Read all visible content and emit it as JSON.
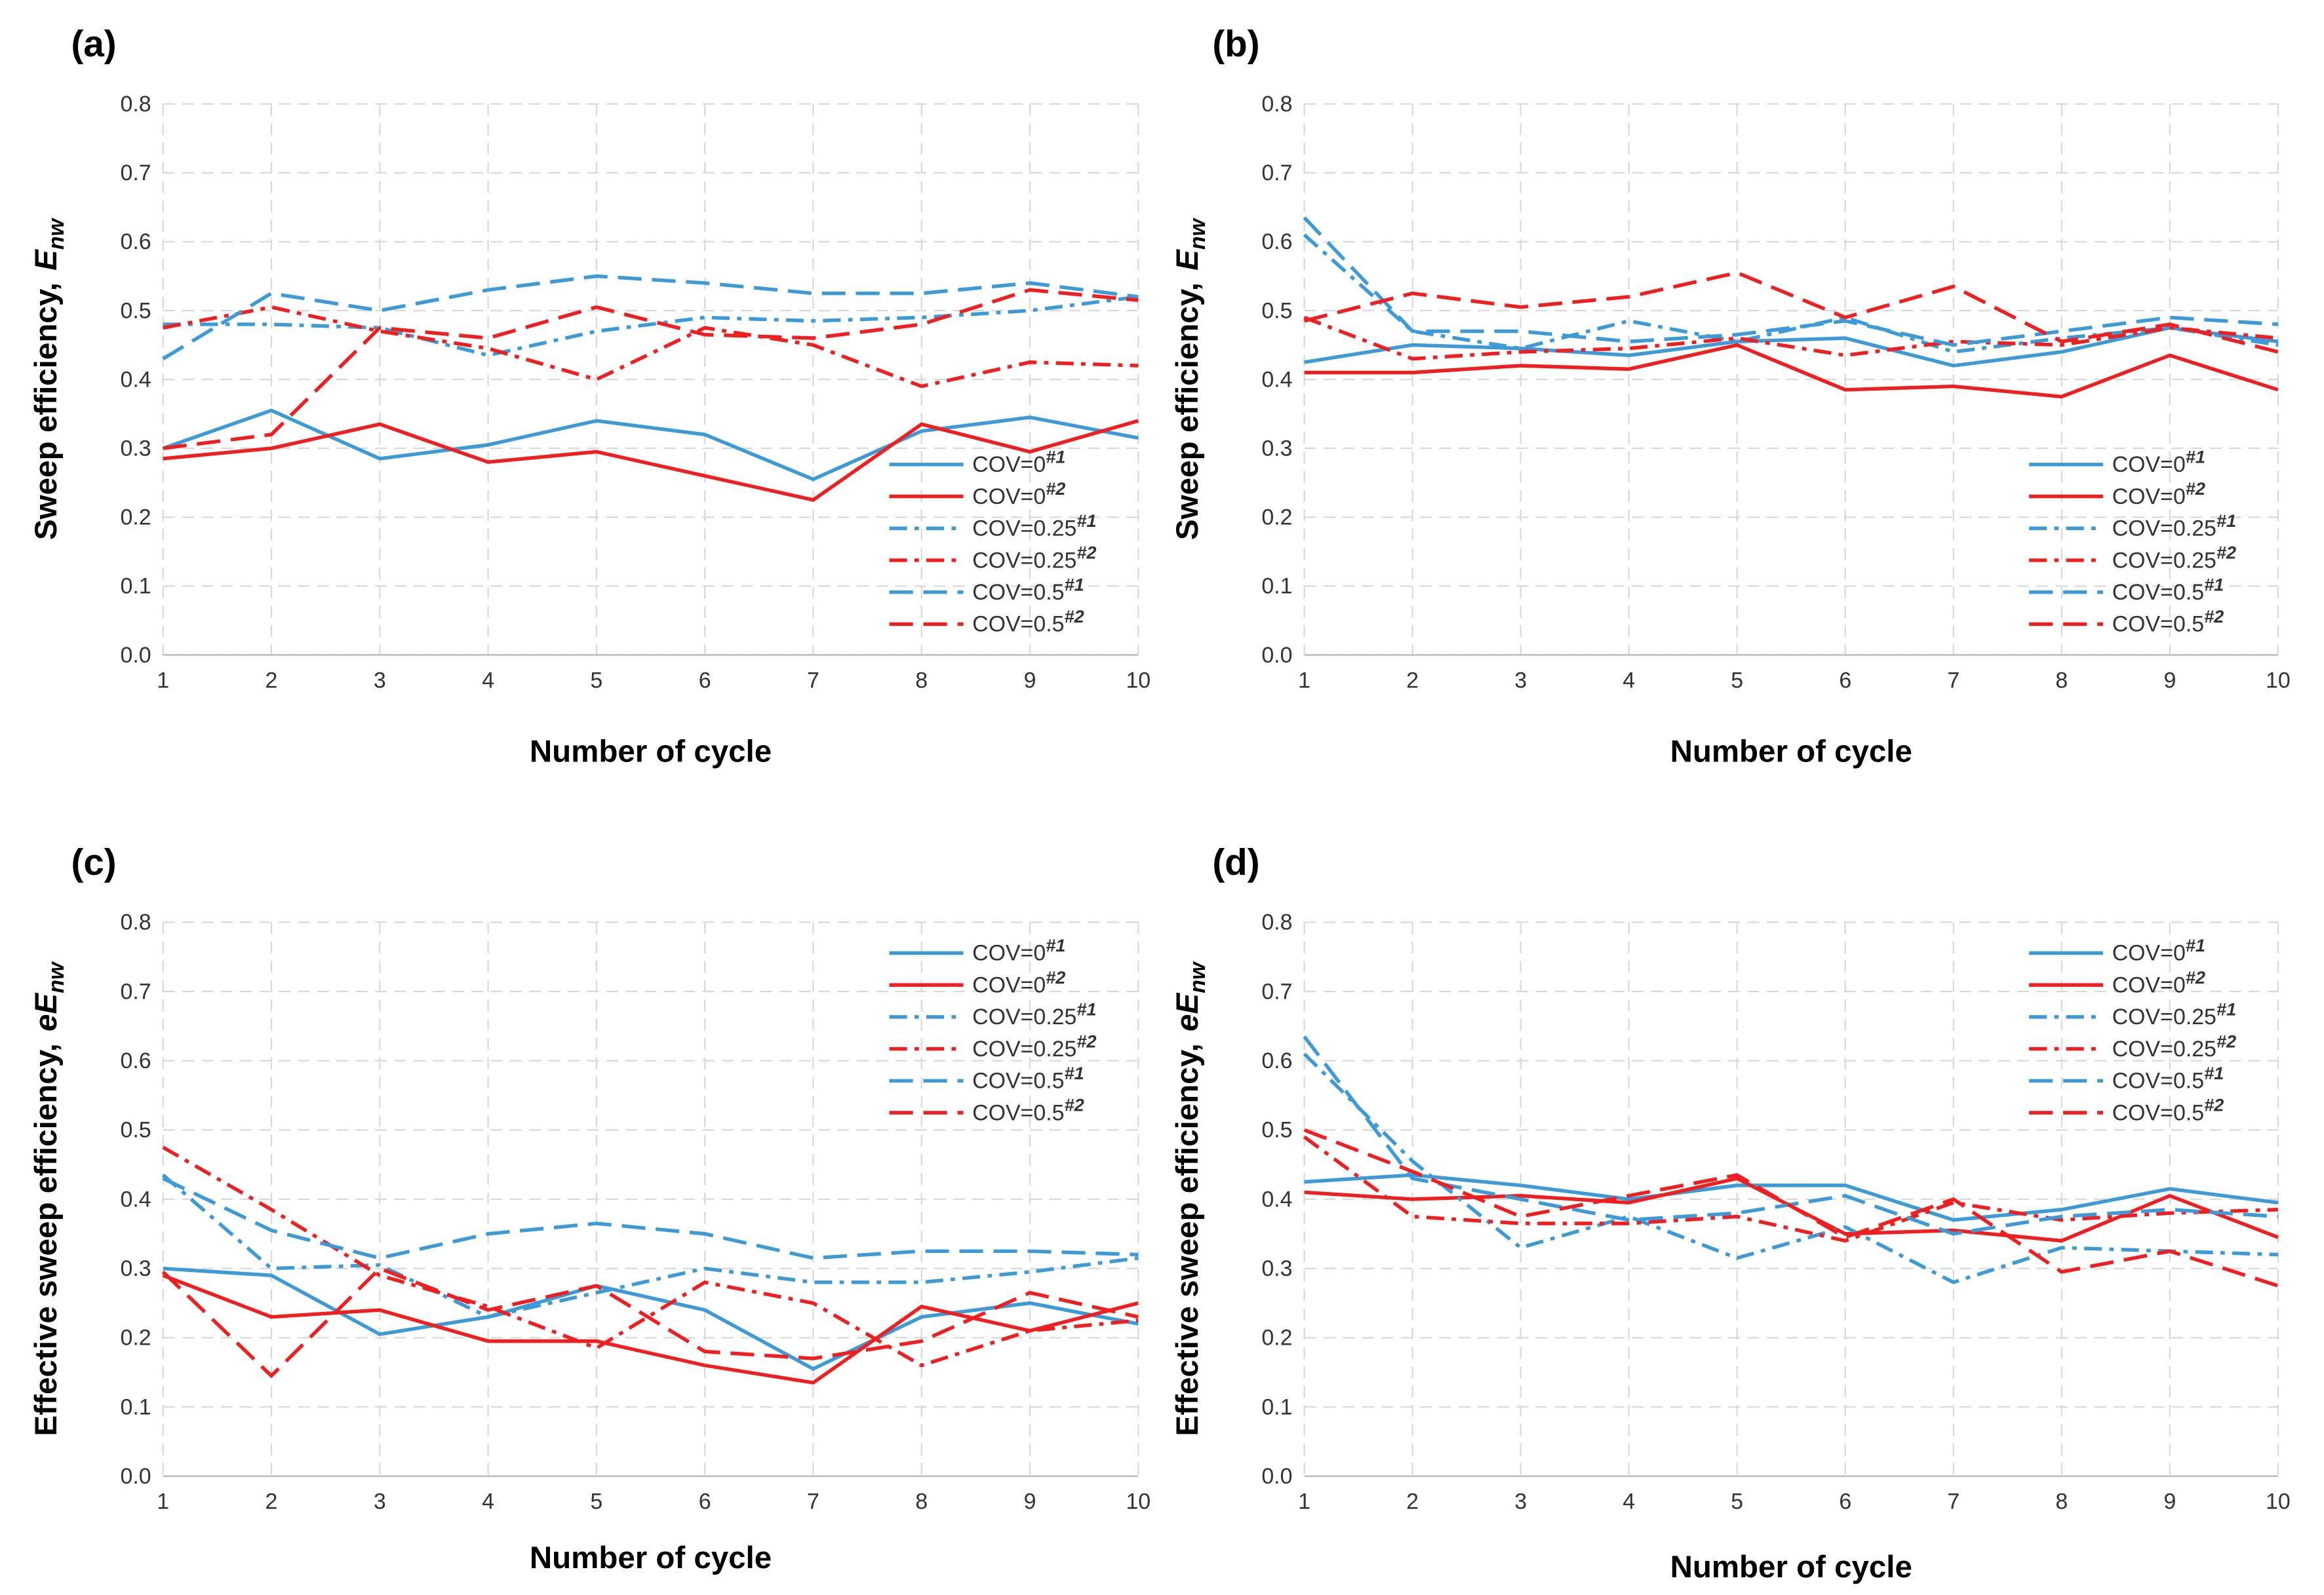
{
  "chart_data": [
    {
      "type": "line",
      "label": "(a)",
      "xlabel": "Number of cycle",
      "ylabel": "Sweep efficiency,",
      "ylabel_symbol": "E",
      "ylabel_sub": "nw",
      "x": [
        1,
        2,
        3,
        4,
        5,
        6,
        7,
        8,
        9,
        10
      ],
      "xlim": [
        1,
        10
      ],
      "xticks": [
        1,
        2,
        3,
        4,
        5,
        6,
        7,
        8,
        9,
        10
      ],
      "ylim": [
        0,
        0.8
      ],
      "yticks": [
        {
          "value": 0,
          "label": "0.0"
        },
        0.1,
        0.2,
        0.3,
        0.4,
        0.5,
        0.6,
        0.7,
        0.8
      ],
      "grid": true,
      "legend": "lower right",
      "series": [
        {
          "name": "COV=0",
          "name_sup": "#1",
          "color": "#3c9ad8",
          "dash": "solid",
          "values": [
            0.3,
            0.355,
            0.285,
            0.305,
            0.34,
            0.32,
            0.255,
            0.325,
            0.345,
            0.315
          ]
        },
        {
          "name": "COV=0",
          "name_sup": "#2",
          "color": "#f01e1e",
          "dash": "solid",
          "values": [
            0.285,
            0.3,
            0.335,
            0.28,
            0.295,
            0.26,
            0.225,
            0.335,
            0.295,
            0.34
          ]
        },
        {
          "name": "COV=0.25",
          "name_sup": "#1",
          "color": "#3c9ad8",
          "dash": "dashdot",
          "values": [
            0.48,
            0.48,
            0.475,
            0.435,
            0.47,
            0.49,
            0.485,
            0.49,
            0.5,
            0.52
          ]
        },
        {
          "name": "COV=0.25",
          "name_sup": "#2",
          "color": "#f01e1e",
          "dash": "dashdot",
          "values": [
            0.475,
            0.505,
            0.47,
            0.445,
            0.4,
            0.475,
            0.45,
            0.39,
            0.425,
            0.42
          ]
        },
        {
          "name": "COV=0.5",
          "name_sup": "#1",
          "color": "#3c9ad8",
          "dash": "dash",
          "values": [
            0.43,
            0.525,
            0.5,
            0.53,
            0.55,
            0.54,
            0.525,
            0.525,
            0.54,
            0.52
          ]
        },
        {
          "name": "COV=0.5",
          "name_sup": "#2",
          "color": "#f01e1e",
          "dash": "dash",
          "values": [
            0.3,
            0.32,
            0.475,
            0.46,
            0.505,
            0.465,
            0.46,
            0.48,
            0.53,
            0.515
          ]
        }
      ]
    },
    {
      "type": "line",
      "label": "(b)",
      "xlabel": "Number of cycle",
      "ylabel": "Sweep efficiency,",
      "ylabel_symbol": "E",
      "ylabel_sub": "nw",
      "x": [
        1,
        2,
        3,
        4,
        5,
        6,
        7,
        8,
        9,
        10
      ],
      "xlim": [
        1,
        10
      ],
      "xticks": [
        1,
        2,
        3,
        4,
        5,
        6,
        7,
        8,
        9,
        10
      ],
      "ylim": [
        0,
        0.8
      ],
      "yticks": [
        {
          "value": 0,
          "label": "0.0"
        },
        0.1,
        0.2,
        0.3,
        0.4,
        0.5,
        0.6,
        0.7,
        0.8
      ],
      "grid": true,
      "legend": "lower right",
      "series": [
        {
          "name": "COV=0",
          "name_sup": "#1",
          "color": "#3c9ad8",
          "dash": "solid",
          "values": [
            0.425,
            0.45,
            0.445,
            0.435,
            0.455,
            0.46,
            0.42,
            0.44,
            0.475,
            0.455
          ]
        },
        {
          "name": "COV=0",
          "name_sup": "#2",
          "color": "#f01e1e",
          "dash": "solid",
          "values": [
            0.41,
            0.41,
            0.42,
            0.415,
            0.45,
            0.385,
            0.39,
            0.375,
            0.435,
            0.385
          ]
        },
        {
          "name": "COV=0.25",
          "name_sup": "#1",
          "color": "#3c9ad8",
          "dash": "dashdot",
          "values": [
            0.61,
            0.47,
            0.445,
            0.485,
            0.455,
            0.49,
            0.44,
            0.46,
            0.475,
            0.45
          ]
        },
        {
          "name": "COV=0.25",
          "name_sup": "#2",
          "color": "#f01e1e",
          "dash": "dashdot",
          "values": [
            0.49,
            0.43,
            0.44,
            0.445,
            0.46,
            0.435,
            0.455,
            0.45,
            0.475,
            0.46
          ]
        },
        {
          "name": "COV=0.5",
          "name_sup": "#1",
          "color": "#3c9ad8",
          "dash": "dash",
          "values": [
            0.635,
            0.47,
            0.47,
            0.455,
            0.465,
            0.485,
            0.45,
            0.47,
            0.49,
            0.48
          ]
        },
        {
          "name": "COV=0.5",
          "name_sup": "#2",
          "color": "#f01e1e",
          "dash": "dash",
          "values": [
            0.485,
            0.525,
            0.505,
            0.52,
            0.555,
            0.49,
            0.535,
            0.455,
            0.48,
            0.44
          ]
        }
      ]
    },
    {
      "type": "line",
      "label": "(c)",
      "xlabel": "Number of cycle",
      "ylabel": "Effective sweep efficiency,",
      "ylabel_symbol": "eE",
      "ylabel_sub": "nw",
      "x": [
        1,
        2,
        3,
        4,
        5,
        6,
        7,
        8,
        9,
        10
      ],
      "xlim": [
        1,
        10
      ],
      "xticks": [
        1,
        2,
        3,
        4,
        5,
        6,
        7,
        8,
        9,
        10
      ],
      "ylim": [
        0,
        0.8
      ],
      "yticks": [
        {
          "value": 0,
          "label": "0.0"
        },
        0.1,
        0.2,
        0.3,
        0.4,
        0.5,
        0.6,
        0.7,
        0.8
      ],
      "grid": true,
      "legend": "upper right",
      "series": [
        {
          "name": "COV=0",
          "name_sup": "#1",
          "color": "#3c9ad8",
          "dash": "solid",
          "values": [
            0.3,
            0.29,
            0.205,
            0.23,
            0.275,
            0.24,
            0.155,
            0.23,
            0.25,
            0.22
          ]
        },
        {
          "name": "COV=0",
          "name_sup": "#2",
          "color": "#f01e1e",
          "dash": "solid",
          "values": [
            0.29,
            0.23,
            0.24,
            0.195,
            0.195,
            0.16,
            0.135,
            0.245,
            0.21,
            0.25
          ]
        },
        {
          "name": "COV=0.25",
          "name_sup": "#1",
          "color": "#3c9ad8",
          "dash": "dashdot",
          "values": [
            0.435,
            0.3,
            0.305,
            0.23,
            0.265,
            0.3,
            0.28,
            0.28,
            0.295,
            0.315
          ]
        },
        {
          "name": "COV=0.25",
          "name_sup": "#2",
          "color": "#f01e1e",
          "dash": "dashdot",
          "values": [
            0.475,
            0.385,
            0.29,
            0.245,
            0.185,
            0.28,
            0.25,
            0.16,
            0.21,
            0.225
          ]
        },
        {
          "name": "COV=0.5",
          "name_sup": "#1",
          "color": "#3c9ad8",
          "dash": "dash",
          "values": [
            0.43,
            0.355,
            0.315,
            0.35,
            0.365,
            0.35,
            0.315,
            0.325,
            0.325,
            0.32
          ]
        },
        {
          "name": "COV=0.5",
          "name_sup": "#2",
          "color": "#f01e1e",
          "dash": "dash",
          "values": [
            0.295,
            0.145,
            0.3,
            0.24,
            0.275,
            0.18,
            0.17,
            0.195,
            0.265,
            0.23
          ]
        }
      ]
    },
    {
      "type": "line",
      "label": "(d)",
      "xlabel": "Number of cycle",
      "ylabel": "Effective sweep efficiency,",
      "ylabel_symbol": "eE",
      "ylabel_sub": "nw",
      "x": [
        1,
        2,
        3,
        4,
        5,
        6,
        7,
        8,
        9,
        10
      ],
      "xlim": [
        1,
        10
      ],
      "xticks": [
        1,
        2,
        3,
        4,
        5,
        6,
        7,
        8,
        9,
        10
      ],
      "ylim": [
        0,
        0.8
      ],
      "yticks": [
        {
          "value": 0,
          "label": "0.0"
        },
        0.1,
        0.2,
        0.3,
        0.4,
        0.5,
        0.6,
        0.7,
        0.8
      ],
      "grid": true,
      "legend": "upper right",
      "series": [
        {
          "name": "COV=0",
          "name_sup": "#1",
          "color": "#3c9ad8",
          "dash": "solid",
          "values": [
            0.425,
            0.435,
            0.42,
            0.4,
            0.42,
            0.42,
            0.37,
            0.385,
            0.415,
            0.395
          ]
        },
        {
          "name": "COV=0",
          "name_sup": "#2",
          "color": "#f01e1e",
          "dash": "solid",
          "values": [
            0.41,
            0.4,
            0.405,
            0.395,
            0.43,
            0.35,
            0.355,
            0.34,
            0.405,
            0.345
          ]
        },
        {
          "name": "COV=0.25",
          "name_sup": "#1",
          "color": "#3c9ad8",
          "dash": "dashdot",
          "values": [
            0.61,
            0.455,
            0.33,
            0.375,
            0.315,
            0.36,
            0.28,
            0.33,
            0.325,
            0.32
          ]
        },
        {
          "name": "COV=0.25",
          "name_sup": "#2",
          "color": "#f01e1e",
          "dash": "dashdot",
          "values": [
            0.49,
            0.375,
            0.365,
            0.365,
            0.375,
            0.34,
            0.395,
            0.37,
            0.38,
            0.385
          ]
        },
        {
          "name": "COV=0.5",
          "name_sup": "#1",
          "color": "#3c9ad8",
          "dash": "dash",
          "values": [
            0.635,
            0.43,
            0.4,
            0.37,
            0.38,
            0.405,
            0.35,
            0.375,
            0.385,
            0.375
          ]
        },
        {
          "name": "COV=0.5",
          "name_sup": "#2",
          "color": "#f01e1e",
          "dash": "dash",
          "values": [
            0.5,
            0.44,
            0.375,
            0.405,
            0.435,
            0.345,
            0.4,
            0.295,
            0.325,
            0.275
          ]
        }
      ]
    }
  ]
}
